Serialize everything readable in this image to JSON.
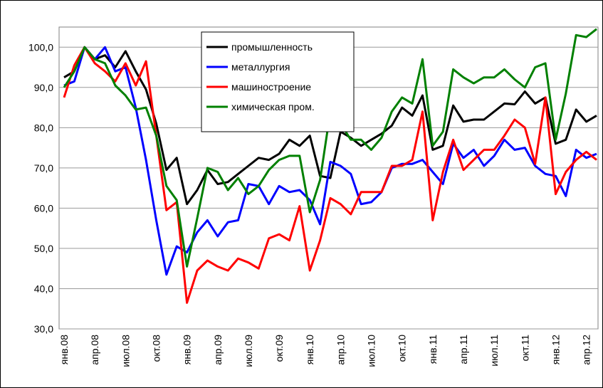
{
  "chart_data": {
    "type": "line",
    "categories": [
      "янв.08",
      null,
      null,
      "апр.08",
      null,
      null,
      "июл.08",
      null,
      null,
      "окт.08",
      null,
      null,
      "янв.09",
      null,
      null,
      "апр.09",
      null,
      null,
      "июл.09",
      null,
      null,
      "окт.09",
      null,
      null,
      "янв.10",
      null,
      null,
      "апр.10",
      null,
      null,
      "июл.10",
      null,
      null,
      "окт.10",
      null,
      null,
      "янв.11",
      null,
      null,
      "апр.11",
      null,
      null,
      "июл.11",
      null,
      null,
      "окт.11",
      null,
      null,
      "янв.12",
      null,
      null,
      "апр.12",
      null
    ],
    "series": [
      {
        "name": "промышленность",
        "color": "#000000",
        "values": [
          92.5,
          94,
          100,
          97,
          98,
          95,
          99,
          94,
          89.5,
          81,
          69.5,
          72.5,
          61,
          64.5,
          69.5,
          66,
          66.5,
          68.5,
          70.5,
          72.5,
          72,
          73.5,
          77,
          75.5,
          78,
          68,
          67.5,
          79,
          77.5,
          75.5,
          77,
          78.5,
          80.5,
          85,
          83,
          88,
          74.5,
          75.5,
          85.5,
          81.5,
          82,
          82,
          84,
          86,
          85.8,
          89,
          86,
          87.5,
          76,
          77,
          84.5,
          81.5,
          83
        ]
      },
      {
        "name": "металлургия",
        "color": "#0000ff",
        "values": [
          90.5,
          91.5,
          100,
          97,
          100,
          94,
          95,
          85,
          72,
          57,
          43.5,
          50.5,
          49,
          54,
          57,
          53,
          56.5,
          57,
          66,
          65.5,
          61,
          65.5,
          64,
          64.5,
          62,
          56,
          71.5,
          70.5,
          68.5,
          61,
          61.5,
          64,
          70,
          71,
          71,
          72,
          69,
          66,
          76,
          72.5,
          74.5,
          70.5,
          73,
          77,
          74.5,
          75,
          70.5,
          68.5,
          68,
          63,
          74.5,
          72.5,
          73.5
        ]
      },
      {
        "name": "машиностроение",
        "color": "#ff0000",
        "values": [
          87.5,
          95.5,
          100,
          96,
          94,
          91.5,
          96,
          90.5,
          96.5,
          78,
          59.5,
          61.5,
          36.5,
          44.5,
          47,
          45.5,
          44.5,
          47.5,
          46.5,
          45,
          52.5,
          53.5,
          52,
          60.5,
          44.5,
          52,
          62.5,
          61,
          58.5,
          64,
          64,
          64,
          70.5,
          70.5,
          72,
          84,
          57,
          69,
          77,
          69.5,
          72,
          74.5,
          74.5,
          78,
          82,
          80,
          71,
          87.5,
          63.5,
          69,
          72,
          74,
          72
        ]
      },
      {
        "name": "химическая пром.",
        "color": "#008000",
        "values": [
          90,
          94,
          100,
          97,
          96,
          90.5,
          88,
          84.5,
          85,
          78,
          65.5,
          62,
          45.5,
          57.5,
          70,
          69,
          64.5,
          67.5,
          63.5,
          65.5,
          69.5,
          72,
          73,
          73,
          59,
          67,
          84,
          81,
          77,
          77,
          74.5,
          77.5,
          84,
          87.5,
          86,
          97,
          75.5,
          79,
          94.5,
          92.5,
          91,
          92.5,
          92.5,
          94.5,
          92,
          90,
          95,
          96,
          77,
          88.5,
          103,
          102.5,
          104.5
        ]
      }
    ],
    "ylim": [
      30,
      105
    ],
    "yticks": [
      {
        "value": 30,
        "label": "30,0"
      },
      {
        "value": 40,
        "label": "40,0"
      },
      {
        "value": 50,
        "label": "50,0"
      },
      {
        "value": 60,
        "label": "60,0"
      },
      {
        "value": 70,
        "label": "70,0"
      },
      {
        "value": 80,
        "label": "80,0"
      },
      {
        "value": 90,
        "label": "90,0"
      },
      {
        "value": 100,
        "label": "100,0"
      }
    ],
    "grid": true
  }
}
